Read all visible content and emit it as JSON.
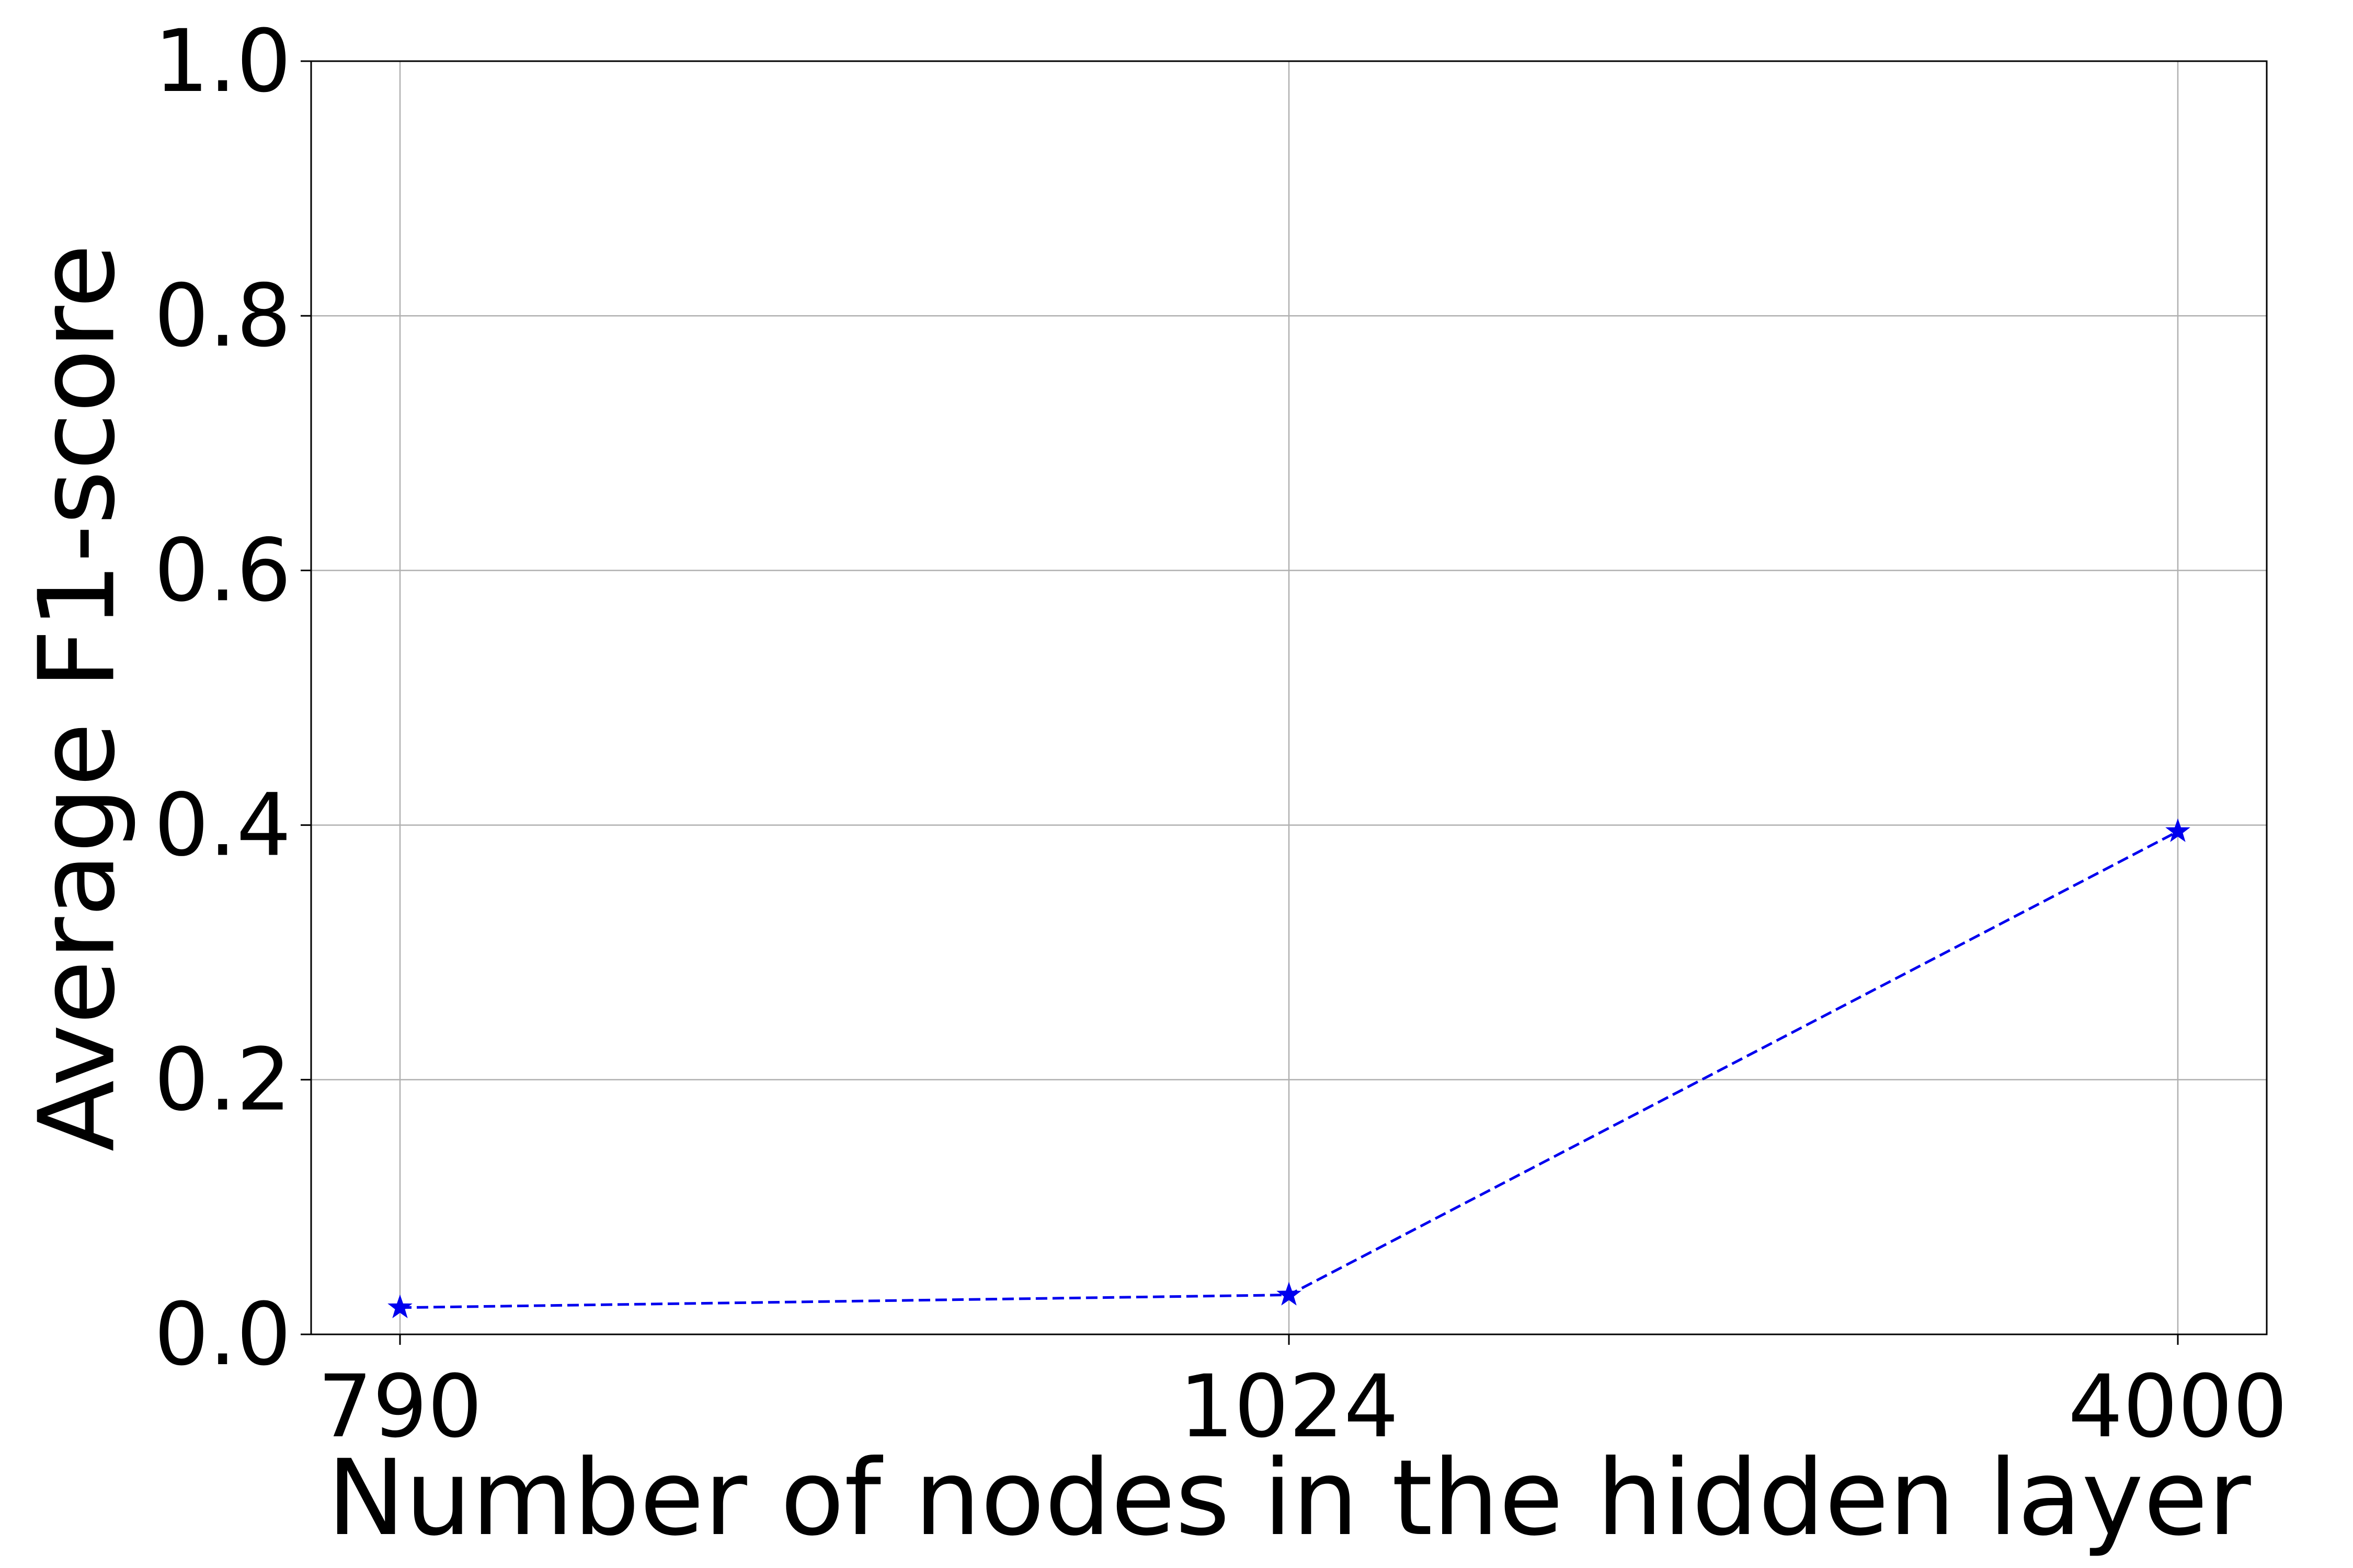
{
  "chart_data": {
    "type": "line",
    "title": "",
    "xlabel": "Number of nodes in the hidden layer",
    "ylabel": "Average F1-score",
    "categories": [
      "790",
      "1024",
      "4000"
    ],
    "series": [
      {
        "values": [
          0.021,
          0.031,
          0.395
        ],
        "color": "#0000ee",
        "line_style": "dashed",
        "marker": "star"
      }
    ],
    "ylim": [
      0.0,
      1.0
    ],
    "yticks": [
      "0.0",
      "0.2",
      "0.4",
      "0.6",
      "0.8",
      "1.0"
    ],
    "grid": true,
    "legend": "none"
  }
}
